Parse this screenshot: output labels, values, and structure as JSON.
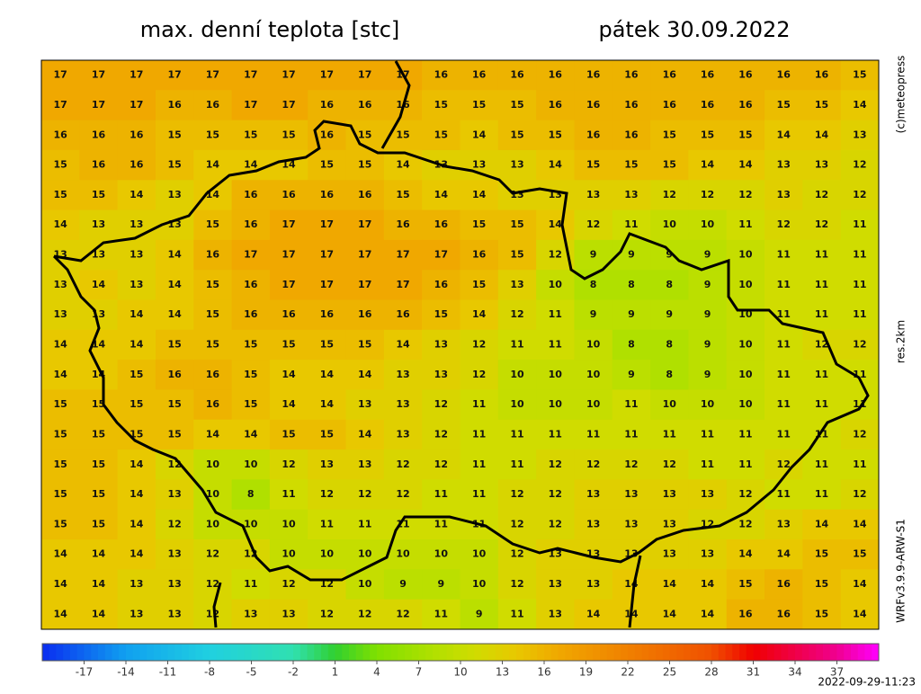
{
  "header": {
    "title": "max. denní teplota [stc]",
    "date": "pátek 30.09.2022"
  },
  "side_labels": {
    "copyright": "(c)meteopress",
    "resolution": "res.2km",
    "model": "WRFv3.9.9-ARW-S1"
  },
  "timestamp": "2022-09-29-11:23",
  "chart_data": {
    "type": "heatmap",
    "rows": [
      [
        17,
        17,
        17,
        17,
        17,
        17,
        17,
        17,
        17,
        17,
        16,
        16,
        16,
        16,
        16,
        16,
        16,
        16,
        16,
        16,
        16,
        15
      ],
      [
        17,
        17,
        17,
        16,
        16,
        17,
        17,
        16,
        16,
        16,
        15,
        15,
        15,
        16,
        16,
        16,
        16,
        16,
        16,
        15,
        15,
        14
      ],
      [
        16,
        16,
        16,
        15,
        15,
        15,
        15,
        16,
        15,
        15,
        15,
        14,
        15,
        15,
        16,
        16,
        15,
        15,
        15,
        14,
        14,
        13
      ],
      [
        15,
        16,
        16,
        15,
        14,
        14,
        14,
        15,
        15,
        14,
        13,
        13,
        13,
        14,
        15,
        15,
        15,
        14,
        14,
        13,
        13,
        12
      ],
      [
        15,
        15,
        14,
        13,
        14,
        16,
        16,
        16,
        16,
        15,
        14,
        14,
        13,
        13,
        13,
        13,
        12,
        12,
        12,
        13,
        12,
        12
      ],
      [
        14,
        13,
        13,
        13,
        15,
        16,
        17,
        17,
        17,
        16,
        16,
        15,
        15,
        14,
        12,
        11,
        10,
        10,
        11,
        12,
        12,
        11
      ],
      [
        13,
        13,
        13,
        14,
        16,
        17,
        17,
        17,
        17,
        17,
        17,
        16,
        15,
        12,
        9,
        9,
        9,
        9,
        10,
        11,
        11,
        11
      ],
      [
        13,
        14,
        13,
        14,
        15,
        16,
        17,
        17,
        17,
        17,
        16,
        15,
        13,
        10,
        8,
        8,
        8,
        9,
        10,
        11,
        11,
        11
      ],
      [
        13,
        13,
        14,
        14,
        15,
        16,
        16,
        16,
        16,
        16,
        15,
        14,
        12,
        11,
        9,
        9,
        9,
        9,
        10,
        11,
        11,
        11
      ],
      [
        14,
        14,
        14,
        15,
        15,
        15,
        15,
        15,
        15,
        14,
        13,
        12,
        11,
        11,
        10,
        8,
        8,
        9,
        10,
        11,
        12,
        12
      ],
      [
        14,
        14,
        15,
        16,
        16,
        15,
        14,
        14,
        14,
        13,
        13,
        12,
        10,
        10,
        10,
        9,
        8,
        9,
        10,
        11,
        11,
        11
      ],
      [
        15,
        15,
        15,
        15,
        16,
        15,
        14,
        14,
        13,
        13,
        12,
        11,
        10,
        10,
        10,
        11,
        10,
        10,
        10,
        11,
        11,
        11
      ],
      [
        15,
        15,
        15,
        15,
        14,
        14,
        15,
        15,
        14,
        13,
        12,
        11,
        11,
        11,
        11,
        11,
        11,
        11,
        11,
        11,
        11,
        12
      ],
      [
        15,
        15,
        14,
        12,
        10,
        10,
        12,
        13,
        13,
        12,
        12,
        11,
        11,
        12,
        12,
        12,
        12,
        11,
        11,
        12,
        11,
        11
      ],
      [
        15,
        15,
        14,
        13,
        10,
        8,
        11,
        12,
        12,
        12,
        11,
        11,
        12,
        12,
        13,
        13,
        13,
        13,
        12,
        11,
        11,
        12
      ],
      [
        15,
        15,
        14,
        12,
        10,
        10,
        10,
        11,
        11,
        11,
        11,
        11,
        12,
        12,
        13,
        13,
        13,
        12,
        12,
        13,
        14,
        14
      ],
      [
        14,
        14,
        14,
        13,
        12,
        12,
        10,
        10,
        10,
        10,
        10,
        10,
        12,
        13,
        13,
        13,
        13,
        13,
        14,
        14,
        15,
        15
      ],
      [
        14,
        14,
        13,
        13,
        12,
        11,
        12,
        12,
        10,
        9,
        9,
        10,
        12,
        13,
        13,
        14,
        14,
        14,
        15,
        16,
        15,
        14
      ],
      [
        14,
        14,
        13,
        13,
        12,
        13,
        13,
        12,
        12,
        12,
        11,
        9,
        11,
        13,
        14,
        14,
        14,
        14,
        16,
        16,
        15,
        14
      ]
    ],
    "colorbar": {
      "lim": [
        -20,
        40
      ],
      "ticks": [
        -17,
        -14,
        -11,
        -8,
        -5,
        -2,
        1,
        4,
        7,
        10,
        13,
        16,
        19,
        22,
        25,
        28,
        31,
        34,
        37
      ],
      "stops": [
        [
          -20,
          "#0a2cf0"
        ],
        [
          -14,
          "#10a0f0"
        ],
        [
          -8,
          "#20d0e0"
        ],
        [
          -2,
          "#30e0b0"
        ],
        [
          1,
          "#30d030"
        ],
        [
          4,
          "#80e000"
        ],
        [
          8,
          "#b0e000"
        ],
        [
          11,
          "#d0dc00"
        ],
        [
          14,
          "#e8c800"
        ],
        [
          17,
          "#f0a800"
        ],
        [
          22,
          "#f08000"
        ],
        [
          28,
          "#f05000"
        ],
        [
          31,
          "#f00000"
        ],
        [
          37,
          "#f00090"
        ],
        [
          40,
          "#ff00ff"
        ]
      ]
    }
  }
}
